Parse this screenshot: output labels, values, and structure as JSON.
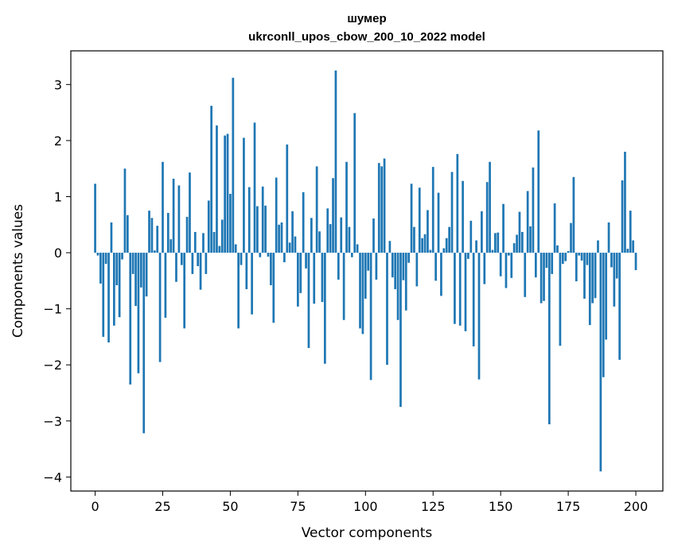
{
  "chart_data": {
    "type": "bar",
    "title": "шумер",
    "subtitle": "ukrconll_upos_cbow_200_10_2022 model",
    "xlabel": "Vector components",
    "ylabel": "Components values",
    "xlim": [
      -9,
      210
    ],
    "ylim": [
      -4.25,
      3.6
    ],
    "xticks": [
      0,
      25,
      50,
      75,
      100,
      125,
      150,
      175,
      200
    ],
    "yticks": [
      -4,
      -3,
      -2,
      -1,
      0,
      1,
      2,
      3
    ],
    "xtick_labels": [
      "0",
      "25",
      "50",
      "75",
      "100",
      "125",
      "150",
      "175",
      "200"
    ],
    "ytick_labels": [
      "−4",
      "−3",
      "−2",
      "−1",
      "0",
      "1",
      "2",
      "3"
    ],
    "bar_color": "#1f77b4",
    "grid": false,
    "legend": "none",
    "values": [
      1.23,
      -0.05,
      -0.55,
      -1.5,
      -0.2,
      -1.6,
      0.54,
      -1.3,
      -0.58,
      -1.15,
      -0.12,
      1.5,
      0.67,
      -2.35,
      -0.38,
      -0.95,
      -2.15,
      -0.62,
      -3.22,
      -0.78,
      0.75,
      0.62,
      0.04,
      0.48,
      -1.95,
      1.62,
      -1.16,
      0.71,
      0.24,
      1.32,
      -0.52,
      1.2,
      -0.22,
      -1.35,
      0.64,
      1.43,
      -0.38,
      0.37,
      -0.24,
      -0.66,
      0.35,
      -0.38,
      0.93,
      2.62,
      0.37,
      2.27,
      0.12,
      0.59,
      2.09,
      2.12,
      1.05,
      3.12,
      0.15,
      -1.35,
      -0.22,
      2.05,
      -0.65,
      1.17,
      -1.1,
      2.32,
      0.83,
      -0.08,
      1.18,
      0.84,
      -0.07,
      -0.58,
      -1.25,
      1.34,
      0.5,
      0.54,
      -0.17,
      1.93,
      0.18,
      0.74,
      0.29,
      -0.96,
      -0.72,
      1.08,
      -0.28,
      -1.7,
      0.62,
      -0.91,
      1.54,
      0.38,
      -0.88,
      -1.98,
      0.79,
      0.51,
      1.33,
      3.25,
      -0.48,
      0.63,
      -1.2,
      1.62,
      0.46,
      -0.08,
      2.49,
      0.15,
      -1.35,
      -1.45,
      -0.82,
      -0.32,
      -2.27,
      0.61,
      -0.48,
      1.6,
      1.54,
      1.68,
      -2.0,
      0.21,
      -0.44,
      -0.65,
      -1.2,
      -2.75,
      -0.49,
      -1.03,
      -0.18,
      1.23,
      0.46,
      -0.6,
      1.16,
      0.26,
      0.33,
      0.76,
      0.05,
      1.53,
      -0.5,
      1.07,
      -0.77,
      0.08,
      0.26,
      0.46,
      1.44,
      -1.27,
      1.76,
      -1.3,
      1.28,
      -1.4,
      -0.11,
      0.57,
      -1.67,
      0.22,
      -2.26,
      0.74,
      -0.56,
      1.26,
      1.62,
      0.05,
      0.35,
      0.36,
      -0.42,
      0.87,
      -0.63,
      -0.05,
      -0.45,
      0.17,
      0.32,
      0.73,
      0.37,
      -0.79,
      1.1,
      0.47,
      1.52,
      -0.44,
      2.18,
      -0.9,
      -0.86,
      -0.27,
      -3.06,
      -0.38,
      0.88,
      0.13,
      -1.66,
      -0.2,
      -0.15,
      0.03,
      0.53,
      1.35,
      -0.51,
      -0.05,
      -0.14,
      -0.82,
      -0.22,
      -1.29,
      -0.9,
      -0.81,
      0.22,
      -3.9,
      -2.22,
      -1.55,
      0.54,
      -0.26,
      -0.96,
      -0.46,
      -1.91,
      1.29,
      1.8,
      0.07,
      0.75,
      0.22,
      -0.31
    ]
  }
}
